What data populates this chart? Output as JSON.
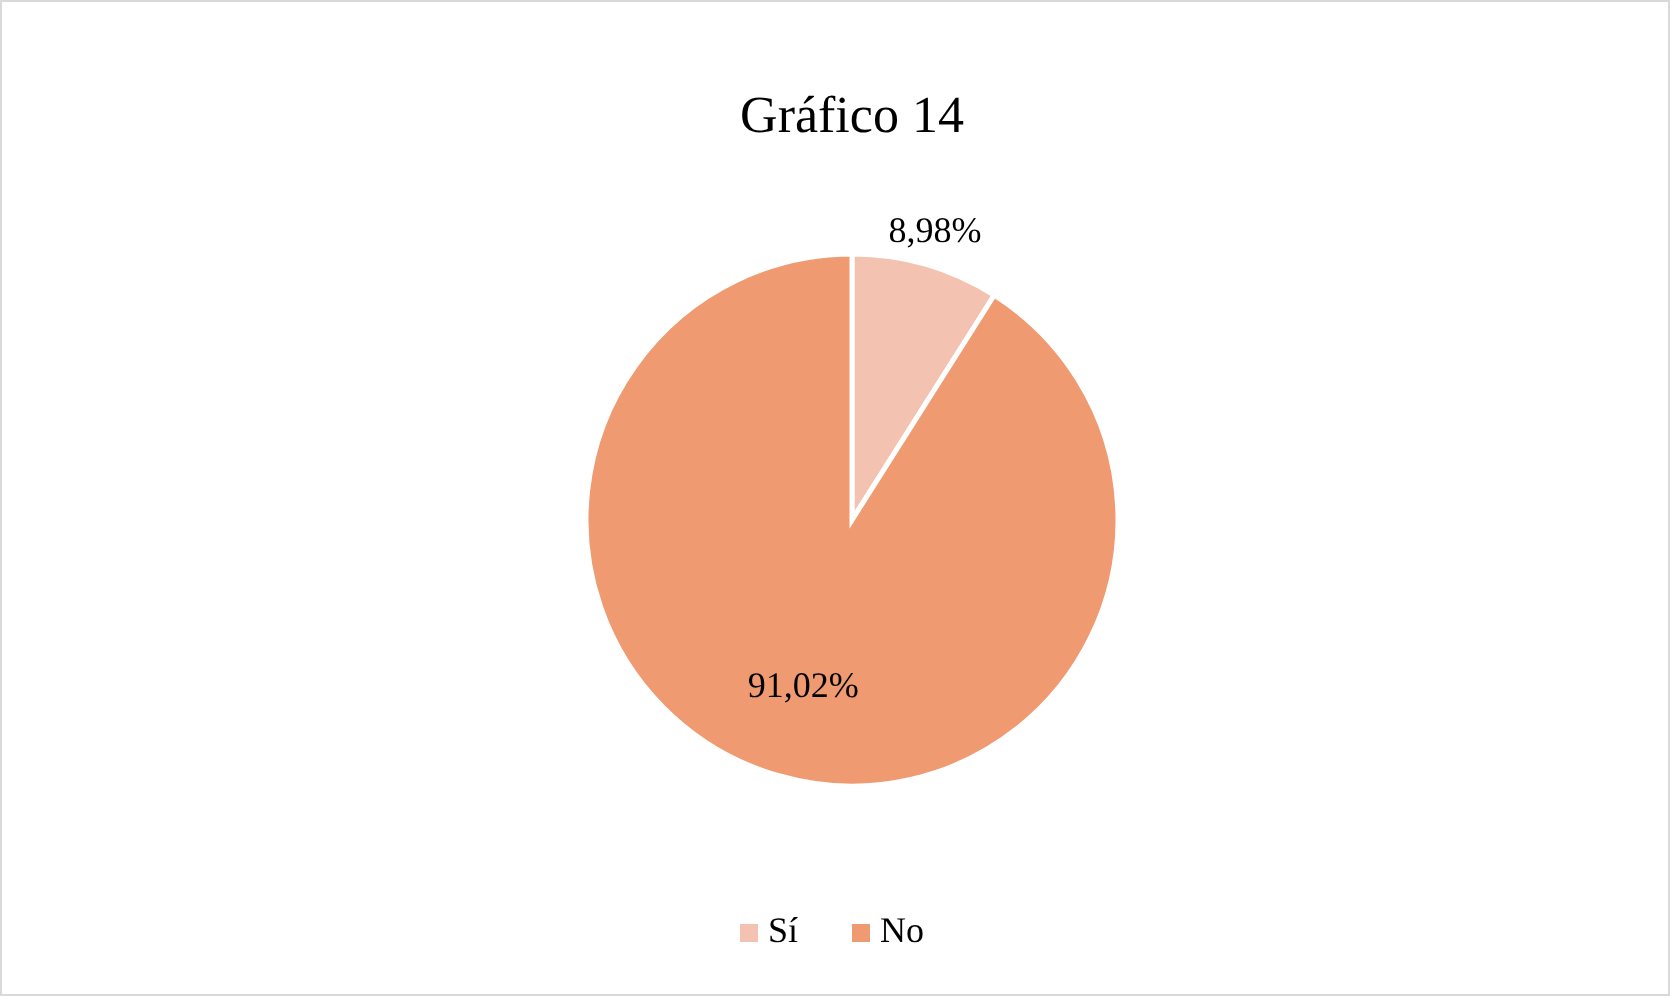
{
  "chart_data": {
    "type": "pie",
    "title": "Gráfico 14",
    "categories": [
      "Sí",
      "No"
    ],
    "values": [
      8.98,
      91.02
    ],
    "value_labels": [
      "8,98%",
      "91,02%"
    ],
    "colors": [
      "#f4c2b0",
      "#f09a72"
    ],
    "legend": "bottom"
  }
}
